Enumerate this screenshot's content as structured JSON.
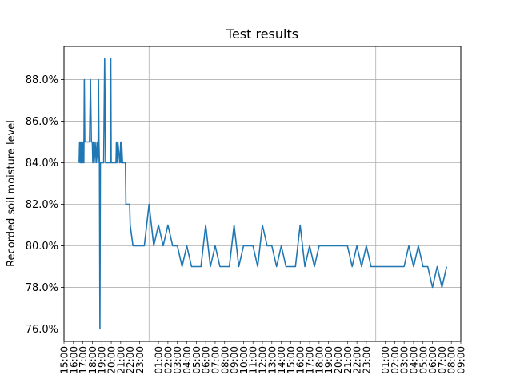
{
  "chart_data": {
    "type": "line",
    "title": "Test results",
    "xlabel": "",
    "ylabel": "Recorded soil moisture level",
    "x_axis": "time of day (hours since 15:00 on day 1)",
    "xlim": [
      15.0,
      57.0
    ],
    "ylim": [
      75.4,
      89.6
    ],
    "grid": true,
    "colors": {
      "line": "#1f77b4",
      "grid": "#b0b0b0"
    },
    "y_ticks": [
      {
        "value": 76,
        "label": "76.0%"
      },
      {
        "value": 78,
        "label": "78.0%"
      },
      {
        "value": 80,
        "label": "80.0%"
      },
      {
        "value": 82,
        "label": "82.0%"
      },
      {
        "value": 84,
        "label": "84.0%"
      },
      {
        "value": 86,
        "label": "86.0%"
      },
      {
        "value": 88,
        "label": "88.0%"
      }
    ],
    "x_ticks": [
      {
        "value": 15,
        "label": "15:00"
      },
      {
        "value": 16,
        "label": "16:00"
      },
      {
        "value": 17,
        "label": "17:00"
      },
      {
        "value": 18,
        "label": "18:00"
      },
      {
        "value": 19,
        "label": "19:00"
      },
      {
        "value": 20,
        "label": "20:00"
      },
      {
        "value": 21,
        "label": "21:00"
      },
      {
        "value": 22,
        "label": "22:00"
      },
      {
        "value": 23,
        "label": "23:00"
      },
      {
        "value": 25,
        "label": "01:00"
      },
      {
        "value": 26,
        "label": "02:00"
      },
      {
        "value": 27,
        "label": "03:00"
      },
      {
        "value": 28,
        "label": "04:00"
      },
      {
        "value": 29,
        "label": "05:00"
      },
      {
        "value": 30,
        "label": "06:00"
      },
      {
        "value": 31,
        "label": "07:00"
      },
      {
        "value": 32,
        "label": "08:00"
      },
      {
        "value": 33,
        "label": "09:00"
      },
      {
        "value": 34,
        "label": "10:00"
      },
      {
        "value": 35,
        "label": "11:00"
      },
      {
        "value": 36,
        "label": "12:00"
      },
      {
        "value": 37,
        "label": "13:00"
      },
      {
        "value": 38,
        "label": "14:00"
      },
      {
        "value": 39,
        "label": "15:00"
      },
      {
        "value": 40,
        "label": "16:00"
      },
      {
        "value": 41,
        "label": "17:00"
      },
      {
        "value": 42,
        "label": "18:00"
      },
      {
        "value": 43,
        "label": "19:00"
      },
      {
        "value": 44,
        "label": "20:00"
      },
      {
        "value": 45,
        "label": "21:00"
      },
      {
        "value": 46,
        "label": "22:00"
      },
      {
        "value": 47,
        "label": "23:00"
      },
      {
        "value": 49,
        "label": "01:00"
      },
      {
        "value": 50,
        "label": "02:00"
      },
      {
        "value": 51,
        "label": "03:00"
      },
      {
        "value": 52,
        "label": "04:00"
      },
      {
        "value": 53,
        "label": "05:00"
      },
      {
        "value": 54,
        "label": "06:00"
      },
      {
        "value": 55,
        "label": "07:00"
      },
      {
        "value": 56,
        "label": "08:00"
      },
      {
        "value": 57,
        "label": "09:00"
      }
    ],
    "major_gridlines_x": [
      24,
      48
    ],
    "series": [
      {
        "x": [
          16.6,
          16.65,
          16.7,
          16.75,
          16.8,
          16.85,
          16.9,
          16.95,
          17.0,
          17.05,
          17.1,
          17.15,
          17.2,
          17.25,
          17.3,
          17.4,
          17.5,
          17.6,
          17.7,
          17.8,
          17.9,
          18.0,
          18.05,
          18.1,
          18.2,
          18.3,
          18.4,
          18.5,
          18.6,
          18.65,
          18.7,
          18.75,
          18.8,
          18.85,
          18.9,
          18.95,
          19.0,
          19.05,
          19.1,
          19.2,
          19.3,
          19.4,
          19.5,
          19.6,
          19.65,
          19.7,
          19.8,
          19.9,
          19.95,
          20.0,
          20.1,
          20.2,
          20.5,
          20.55,
          20.6,
          20.7,
          20.9,
          21.0,
          21.05,
          21.1,
          21.2,
          21.3,
          21.4,
          21.5,
          21.55,
          21.6,
          21.65,
          21.7,
          21.75,
          21.8,
          21.85,
          21.9,
          21.95,
          22.0,
          22.3,
          23.0,
          23.5,
          24.0,
          24.5,
          25.0,
          25.5,
          26.0,
          26.5,
          27.0,
          27.5,
          28.0,
          28.5,
          29.0,
          29.5,
          30.0,
          30.5,
          31.0,
          31.5,
          32.0,
          32.5,
          33.0,
          33.5,
          34.0,
          34.5,
          35.0,
          35.5,
          36.0,
          36.5,
          37.0,
          37.5,
          38.0,
          38.5,
          39.0,
          39.5,
          40.0,
          40.5,
          41.0,
          41.5,
          42.0,
          45.0,
          45.5,
          46.0,
          46.5,
          47.0,
          47.5,
          48.0,
          48.5,
          49.0,
          49.5,
          50.0,
          50.5,
          51.0,
          51.5,
          52.0,
          52.5,
          53.0,
          53.5,
          54.0,
          54.5,
          55.0,
          55.5
        ],
        "y": [
          84,
          85,
          84,
          85,
          84,
          85,
          84,
          85,
          84,
          85,
          84,
          88,
          85,
          85,
          85,
          85,
          85,
          85,
          85,
          88,
          85,
          85,
          84,
          85,
          84,
          85,
          84,
          85,
          84,
          88,
          85,
          84,
          76,
          84,
          84,
          84,
          84,
          84,
          84,
          84,
          89,
          84,
          84,
          84,
          84,
          84,
          84,
          84,
          89,
          84,
          84,
          84,
          84,
          85,
          84,
          85,
          84,
          85,
          84,
          85,
          84,
          84,
          84,
          84,
          82,
          82,
          82,
          82,
          82,
          82,
          82,
          82,
          82,
          81,
          80,
          80,
          80,
          82,
          80,
          81,
          80,
          81,
          80,
          80,
          79,
          80,
          79,
          79,
          79,
          81,
          79,
          80,
          79,
          79,
          79,
          81,
          79,
          80,
          80,
          80,
          79,
          81,
          80,
          80,
          79,
          80,
          79,
          79,
          79,
          81,
          79,
          80,
          79,
          80,
          80,
          79,
          80,
          79,
          80,
          79,
          79,
          79,
          79,
          79,
          79,
          79,
          79,
          80,
          79,
          80,
          79,
          79,
          78,
          79,
          78,
          79
        ]
      }
    ]
  }
}
